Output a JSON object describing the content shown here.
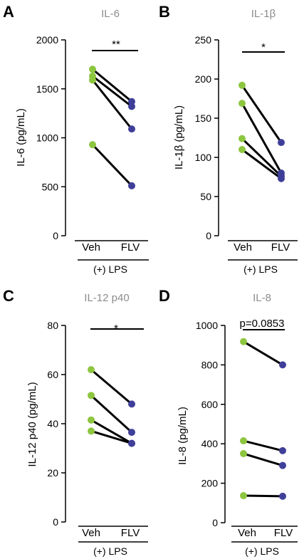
{
  "colors": {
    "veh": "#8dc63f",
    "flv": "#3f3f9a",
    "line": "#000000",
    "title": "#8c8c8c"
  },
  "chart_data": [
    {
      "letter": "A",
      "title": "IL-6",
      "type": "line",
      "ylabel": "IL-6 (pg/mL)",
      "ylim": [
        0,
        2000
      ],
      "yticks": [
        "0",
        "500",
        "1000",
        "1500",
        "2000"
      ],
      "categories": [
        "Veh",
        "FLV"
      ],
      "group_label": "(+) LPS",
      "significance": "**",
      "pairs": [
        [
          1700,
          1370
        ],
        [
          1630,
          1320
        ],
        [
          1590,
          1090
        ],
        [
          930,
          510
        ]
      ]
    },
    {
      "letter": "B",
      "title": "IL-1β",
      "type": "line",
      "ylabel": "IL-1β (pg/mL)",
      "ylim": [
        0,
        250
      ],
      "yticks": [
        "0",
        "50",
        "100",
        "150",
        "200",
        "250"
      ],
      "categories": [
        "Veh",
        "FLV"
      ],
      "group_label": "(+) LPS",
      "significance": "*",
      "pairs": [
        [
          192,
          119
        ],
        [
          169,
          80
        ],
        [
          124,
          76
        ],
        [
          110,
          73
        ]
      ]
    },
    {
      "letter": "C",
      "title": "IL-12 p40",
      "type": "line",
      "ylabel": "IL-12 p40 (pg/mL)",
      "ylim": [
        0,
        80
      ],
      "yticks": [
        "0",
        "20",
        "40",
        "60",
        "80"
      ],
      "categories": [
        "Veh",
        "FLV"
      ],
      "group_label": "(+) LPS",
      "significance": "*",
      "pairs": [
        [
          62,
          48
        ],
        [
          51.5,
          36.5
        ],
        [
          41.5,
          32
        ],
        [
          37,
          32
        ]
      ]
    },
    {
      "letter": "D",
      "title": "IL-8",
      "type": "line",
      "ylabel": "IL-8 (pg/mL)",
      "ylim": [
        0,
        1000
      ],
      "yticks": [
        "0",
        "200",
        "400",
        "600",
        "800",
        "1000"
      ],
      "categories": [
        "Veh",
        "FLV"
      ],
      "group_label": "(+) LPS",
      "significance": "p=0.0853",
      "pairs": [
        [
          918,
          800
        ],
        [
          415,
          365
        ],
        [
          350,
          290
        ],
        [
          137,
          134
        ]
      ]
    }
  ]
}
